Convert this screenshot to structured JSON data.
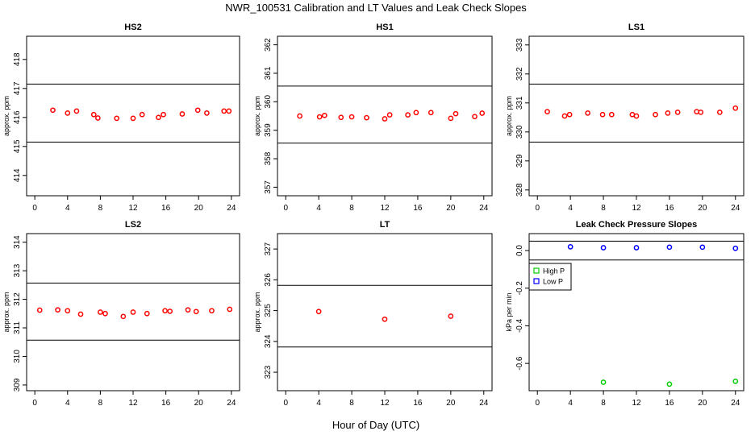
{
  "figure": {
    "title": "NWR_100531  Calibration and LT Values and Leak Check Slopes",
    "xlabel": "Hour of Day (UTC)"
  },
  "chart_data": [
    {
      "type": "scatter",
      "title": "HS2",
      "ylabel": "approx. ppm",
      "xlim": [
        -1,
        25
      ],
      "xticks": [
        0,
        4,
        8,
        12,
        16,
        20,
        24
      ],
      "ylim": [
        413.3,
        418.8
      ],
      "yticks": [
        414,
        415,
        416,
        417,
        418
      ],
      "hlines": [
        417.15,
        415.15
      ],
      "series": [
        {
          "color": "#ff0000",
          "x": [
            2.2,
            4.0,
            5.1,
            7.2,
            7.7,
            10.0,
            12.0,
            13.1,
            15.1,
            15.7,
            18.0,
            19.9,
            21.0,
            23.1,
            23.7
          ],
          "y": [
            416.25,
            416.15,
            416.22,
            416.1,
            415.98,
            415.97,
            415.97,
            416.1,
            416.0,
            416.1,
            416.12,
            416.25,
            416.15,
            416.22,
            416.22
          ]
        }
      ]
    },
    {
      "type": "scatter",
      "title": "HS1",
      "ylabel": "approx. ppm",
      "xlim": [
        -1,
        25
      ],
      "xticks": [
        0,
        4,
        8,
        12,
        16,
        20,
        24
      ],
      "ylim": [
        356.7,
        362.3
      ],
      "yticks": [
        357,
        358,
        359,
        360,
        361,
        362
      ],
      "hlines": [
        360.55,
        358.55
      ],
      "series": [
        {
          "color": "#ff0000",
          "x": [
            1.7,
            4.1,
            4.7,
            6.7,
            8.0,
            9.8,
            12.0,
            12.6,
            14.8,
            15.8,
            17.6,
            20.0,
            20.6,
            22.9,
            23.8
          ],
          "y": [
            359.5,
            359.47,
            359.52,
            359.45,
            359.47,
            359.44,
            359.4,
            359.54,
            359.54,
            359.62,
            359.62,
            359.42,
            359.58,
            359.48,
            359.6
          ]
        }
      ]
    },
    {
      "type": "scatter",
      "title": "LS1",
      "ylabel": "approx. ppm",
      "xlim": [
        -1,
        25
      ],
      "xticks": [
        0,
        4,
        8,
        12,
        16,
        20,
        24
      ],
      "ylim": [
        327.8,
        333.3
      ],
      "yticks": [
        328,
        329,
        330,
        331,
        332,
        333
      ],
      "hlines": [
        331.65,
        329.65
      ],
      "series": [
        {
          "color": "#ff0000",
          "x": [
            1.2,
            3.3,
            3.9,
            6.1,
            7.9,
            9.0,
            11.5,
            12.0,
            14.3,
            15.8,
            17.0,
            19.3,
            19.8,
            22.1,
            24.0
          ],
          "y": [
            330.7,
            330.55,
            330.6,
            330.65,
            330.6,
            330.6,
            330.6,
            330.55,
            330.6,
            330.65,
            330.68,
            330.7,
            330.68,
            330.68,
            330.82
          ]
        }
      ]
    },
    {
      "type": "scatter",
      "title": "LS2",
      "ylabel": "approx. ppm",
      "xlim": [
        -1,
        25
      ],
      "xticks": [
        0,
        4,
        8,
        12,
        16,
        20,
        24
      ],
      "ylim": [
        308.8,
        314.3
      ],
      "yticks": [
        309,
        310,
        311,
        312,
        313,
        314
      ],
      "hlines": [
        312.57,
        310.57
      ],
      "series": [
        {
          "color": "#ff0000",
          "x": [
            0.6,
            2.8,
            4.0,
            5.6,
            8.0,
            8.6,
            10.8,
            12.0,
            13.7,
            15.9,
            16.5,
            18.7,
            19.7,
            21.6,
            23.8
          ],
          "y": [
            311.62,
            311.63,
            311.6,
            311.48,
            311.55,
            311.5,
            311.4,
            311.55,
            311.5,
            311.6,
            311.58,
            311.63,
            311.57,
            311.6,
            311.65
          ]
        }
      ]
    },
    {
      "type": "scatter",
      "title": "LT",
      "ylabel": "approx. ppm",
      "xlim": [
        -1,
        25
      ],
      "xticks": [
        0,
        4,
        8,
        12,
        16,
        20,
        24
      ],
      "ylim": [
        322.4,
        327.5
      ],
      "yticks": [
        323,
        324,
        325,
        326,
        327
      ],
      "hlines": [
        325.82,
        323.82
      ],
      "series": [
        {
          "color": "#ff0000",
          "x": [
            4.0,
            12.0,
            20.0
          ],
          "y": [
            324.97,
            324.72,
            324.82
          ]
        }
      ]
    },
    {
      "type": "scatter",
      "title": "Leak Check Pressure Slopes",
      "ylabel": "kPa per min",
      "xlim": [
        -1,
        25
      ],
      "xticks": [
        0,
        4,
        8,
        12,
        16,
        20,
        24
      ],
      "ylim": [
        -0.745,
        0.09
      ],
      "yticks": [
        0.0,
        -0.2,
        -0.4,
        -0.6
      ],
      "ytick_labels": [
        "0.0",
        "-0.2",
        "-0.4",
        "-0.6"
      ],
      "hlines": [
        0.05,
        -0.05
      ],
      "legend": {
        "position": "top-left",
        "entries": [
          "High P",
          "Low P"
        ]
      },
      "series": [
        {
          "name": "High P",
          "color": "#00cc00",
          "x": [
            8.0,
            16.0,
            24.0
          ],
          "y": [
            -0.7,
            -0.71,
            -0.695
          ]
        },
        {
          "name": "Low P",
          "color": "#0000ff",
          "x": [
            4.0,
            8.0,
            12.0,
            16.0,
            20.0,
            24.0
          ],
          "y": [
            0.02,
            0.015,
            0.015,
            0.018,
            0.018,
            0.012
          ]
        }
      ]
    }
  ]
}
